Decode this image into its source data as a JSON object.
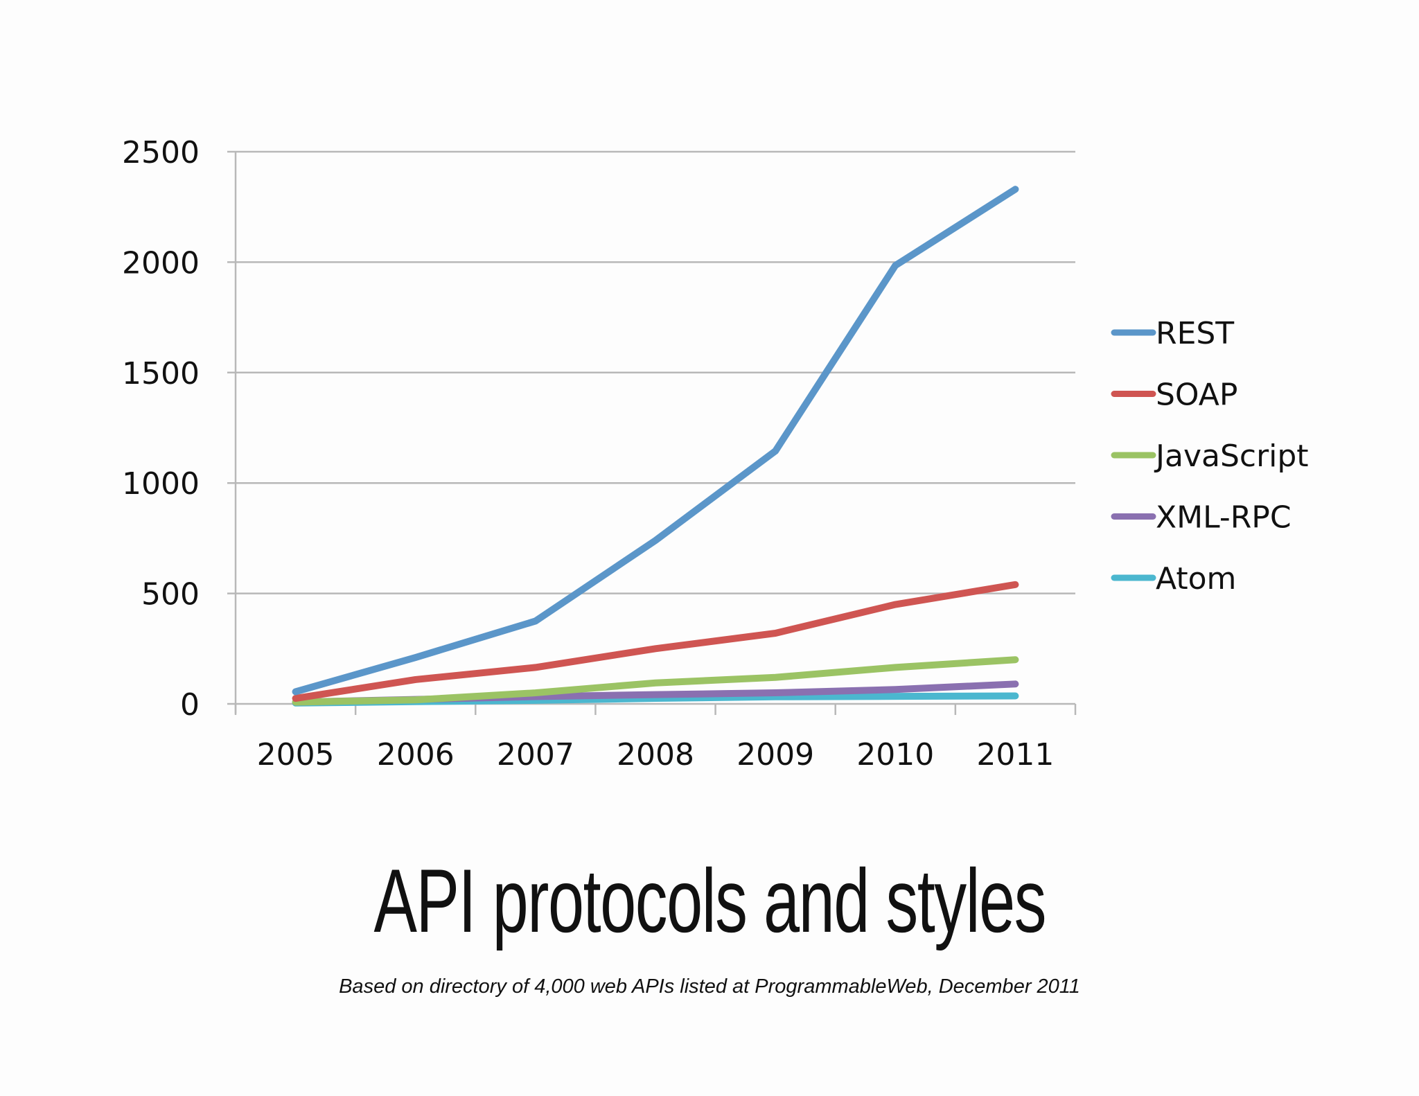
{
  "title": "API protocols and styles",
  "subtitle": "Based on directory of 4,000 web APIs listed at ProgrammableWeb, December 2011",
  "chart_data": {
    "type": "line",
    "title": "API protocols and styles",
    "xlabel": "",
    "ylabel": "",
    "categories": [
      "2005",
      "2006",
      "2007",
      "2008",
      "2009",
      "2010",
      "2011"
    ],
    "ylim": [
      0,
      2500
    ],
    "yticks": [
      "0",
      "500",
      "1000",
      "1500",
      "2000",
      "2500"
    ],
    "grid": true,
    "legend_position": "right",
    "series": [
      {
        "name": "REST",
        "color": "#5b96c9",
        "values": [
          55,
          210,
          375,
          740,
          1145,
          1985,
          2330
        ]
      },
      {
        "name": "SOAP",
        "color": "#cf5552",
        "values": [
          25,
          110,
          165,
          250,
          320,
          450,
          540
        ]
      },
      {
        "name": "JavaScript",
        "color": "#9bc364",
        "values": [
          8,
          18,
          50,
          95,
          120,
          165,
          200
        ]
      },
      {
        "name": "XML-RPC",
        "color": "#8a70b0",
        "values": [
          8,
          20,
          33,
          42,
          50,
          65,
          90
        ]
      },
      {
        "name": "Atom",
        "color": "#4bb7cf",
        "values": [
          4,
          10,
          16,
          25,
          32,
          34,
          36
        ]
      }
    ]
  }
}
